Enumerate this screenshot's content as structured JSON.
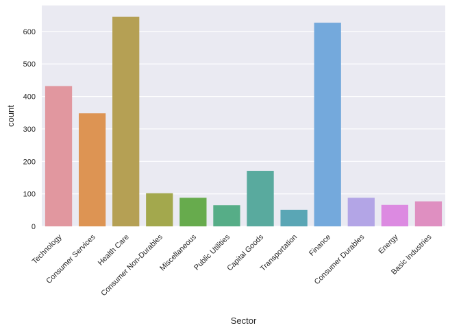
{
  "chart_data": {
    "type": "bar",
    "title": "",
    "xlabel": "Sector",
    "ylabel": "count",
    "categories": [
      "Technology",
      "Consumer Services",
      "Health Care",
      "Consumer Non-Durables",
      "Miscellaneous",
      "Public Utilities",
      "Capital Goods",
      "Transportation",
      "Finance",
      "Consumer Durables",
      "Energy",
      "Basic Industries"
    ],
    "values": [
      432,
      348,
      645,
      102,
      88,
      65,
      171,
      51,
      627,
      88,
      66,
      77
    ],
    "colors": [
      "#e1979f",
      "#dd9453",
      "#b5a054",
      "#a3a84d",
      "#67ab4d",
      "#56ad87",
      "#59aa9e",
      "#5aa6b5",
      "#74a9dc",
      "#b3a5e6",
      "#dc8ae1",
      "#df8fc1"
    ],
    "ylim": [
      0,
      680
    ],
    "yticks": [
      0,
      100,
      200,
      300,
      400,
      500,
      600
    ],
    "grid": true,
    "background": "#eaeaf2"
  }
}
